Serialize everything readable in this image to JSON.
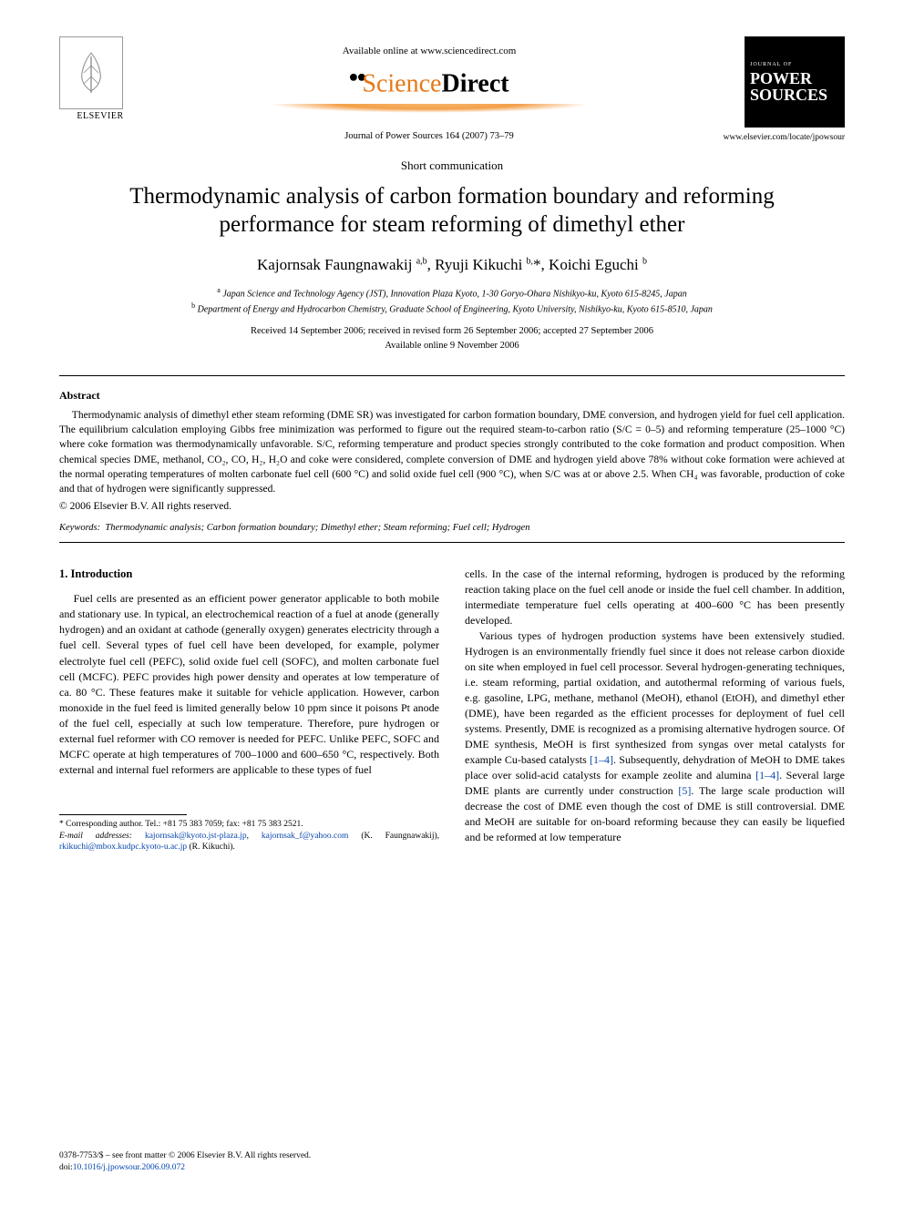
{
  "header": {
    "elsevier_label": "ELSEVIER",
    "available_text": "Available online at www.sciencedirect.com",
    "sd_logo_part1": "Science",
    "sd_logo_part2": "Direct",
    "journal_reference": "Journal of Power Sources 164 (2007) 73–79",
    "journal_cover_label": "JOURNAL OF",
    "journal_cover_title1": "POWER",
    "journal_cover_title2": "SOURCES",
    "journal_url": "www.elsevier.com/locate/jpowsour"
  },
  "article": {
    "type": "Short communication",
    "title": "Thermodynamic analysis of carbon formation boundary and reforming performance for steam reforming of dimethyl ether",
    "authors_html": "Kajornsak Faungnawakij <sup>a,b</sup>, Ryuji Kikuchi <sup>b,</sup>*, Koichi Eguchi <sup>b</sup>",
    "affiliation_a": "Japan Science and Technology Agency (JST), Innovation Plaza Kyoto, 1-30 Goryo-Ohara Nishikyo-ku, Kyoto 615-8245, Japan",
    "affiliation_b": "Department of Energy and Hydrocarbon Chemistry, Graduate School of Engineering, Kyoto University, Nishikyo-ku, Kyoto 615-8510, Japan",
    "dates_line1": "Received 14 September 2006; received in revised form 26 September 2006; accepted 27 September 2006",
    "dates_line2": "Available online 9 November 2006"
  },
  "abstract": {
    "heading": "Abstract",
    "body": "Thermodynamic analysis of dimethyl ether steam reforming (DME SR) was investigated for carbon formation boundary, DME conversion, and hydrogen yield for fuel cell application. The equilibrium calculation employing Gibbs free minimization was performed to figure out the required steam-to-carbon ratio (S/C = 0–5) and reforming temperature (25–1000 °C) where coke formation was thermodynamically unfavorable. S/C, reforming temperature and product species strongly contributed to the coke formation and product composition. When chemical species DME, methanol, CO₂, CO, H₂, H₂O and coke were considered, complete conversion of DME and hydrogen yield above 78% without coke formation were achieved at the normal operating temperatures of molten carbonate fuel cell (600 °C) and solid oxide fuel cell (900 °C), when S/C was at or above 2.5. When CH₄ was favorable, production of coke and that of hydrogen were significantly suppressed.",
    "copyright": "© 2006 Elsevier B.V. All rights reserved."
  },
  "keywords": {
    "label": "Keywords:",
    "list": "Thermodynamic analysis; Carbon formation boundary; Dimethyl ether; Steam reforming; Fuel cell; Hydrogen"
  },
  "introduction": {
    "heading": "1. Introduction",
    "col1_p1": "Fuel cells are presented as an efficient power generator applicable to both mobile and stationary use. In typical, an electrochemical reaction of a fuel at anode (generally hydrogen) and an oxidant at cathode (generally oxygen) generates electricity through a fuel cell. Several types of fuel cell have been developed, for example, polymer electrolyte fuel cell (PEFC), solid oxide fuel cell (SOFC), and molten carbonate fuel cell (MCFC). PEFC provides high power density and operates at low temperature of ca. 80 °C. These features make it suitable for vehicle application. However, carbon monoxide in the fuel feed is limited generally below 10 ppm since it poisons Pt anode of the fuel cell, especially at such low temperature. Therefore, pure hydrogen or external fuel reformer with CO remover is needed for PEFC. Unlike PEFC, SOFC and MCFC operate at high temperatures of 700–1000 and 600–650 °C, respectively. Both external and internal fuel reformers are applicable to these types of fuel",
    "col2_p1": "cells. In the case of the internal reforming, hydrogen is produced by the reforming reaction taking place on the fuel cell anode or inside the fuel cell chamber. In addition, intermediate temperature fuel cells operating at 400–600 °C has been presently developed.",
    "col2_p2_pre": "Various types of hydrogen production systems have been extensively studied. Hydrogen is an environmentally friendly fuel since it does not release carbon dioxide on site when employed in fuel cell processor. Several hydrogen-generating techniques, i.e. steam reforming, partial oxidation, and autothermal reforming of various fuels, e.g. gasoline, LPG, methane, methanol (MeOH), ethanol (EtOH), and dimethyl ether (DME), have been regarded as the efficient processes for deployment of fuel cell systems. Presently, DME is recognized as a promising alternative hydrogen source. Of DME synthesis, MeOH is first synthesized from syngas over metal catalysts for example Cu-based catalysts ",
    "link_1_4a": "[1–4]",
    "col2_p2_mid1": ". Subsequently, dehydration of MeOH to DME takes place over solid-acid catalysts for example zeolite and alumina ",
    "link_1_4b": "[1–4]",
    "col2_p2_mid2": ". Several large DME plants are currently under construction ",
    "link_5": "[5]",
    "col2_p2_post": ". The large scale production will decrease the cost of DME even though the cost of DME is still controversial. DME and MeOH are suitable for on-board reforming because they can easily be liquefied and be reformed at low temperature"
  },
  "footnotes": {
    "corresponding": "* Corresponding author. Tel.: +81 75 383 7059; fax: +81 75 383 2521.",
    "email_label": "E-mail addresses:",
    "email1": "kajornsak@kyoto.jst-plaza.jp",
    "email2": "kajornsak_f@yahoo.com",
    "name1": "(K. Faungnawakij),",
    "email3": "rkikuchi@mbox.kudpc.kyoto-u.ac.jp",
    "name2": "(R. Kikuchi)."
  },
  "footer": {
    "line1": "0378-7753/$ – see front matter © 2006 Elsevier B.V. All rights reserved.",
    "doi_prefix": "doi:",
    "doi": "10.1016/j.jpowsour.2006.09.072"
  },
  "colors": {
    "link": "#0645ad",
    "sd_orange": "#e67817",
    "text": "#000000",
    "bg": "#ffffff"
  }
}
